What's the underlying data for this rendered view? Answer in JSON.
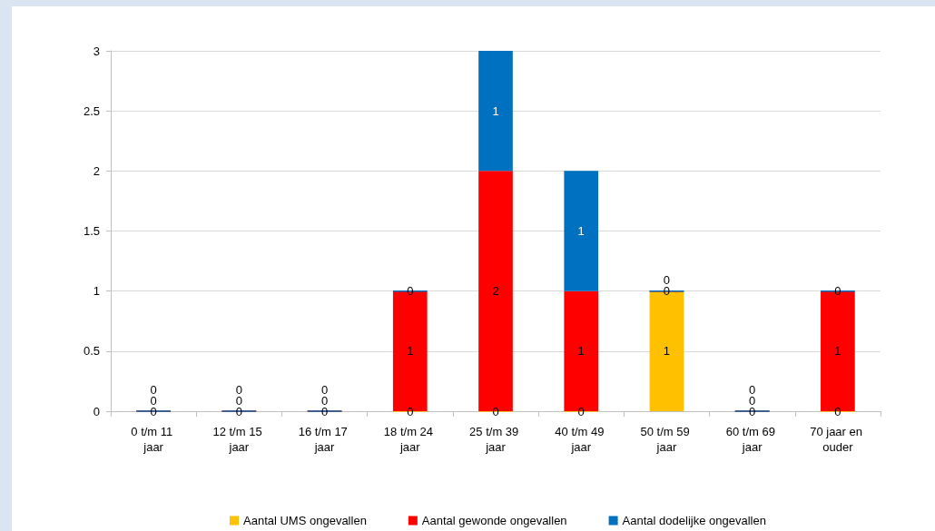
{
  "chart_data": {
    "type": "bar",
    "stacked": true,
    "categories": [
      "0 t/m 11 jaar",
      "12 t/m 15 jaar",
      "16 t/m 17 jaar",
      "18 t/m 24 jaar",
      "25 t/m 39 jaar",
      "40 t/m 49 jaar",
      "50 t/m 59 jaar",
      "60 t/m 69 jaar",
      "70 jaar en ouder"
    ],
    "series": [
      {
        "name": "Aantal UMS ongevallen",
        "color": "#ffc000",
        "values": [
          0,
          0,
          0,
          0,
          0,
          0,
          1,
          0,
          0
        ]
      },
      {
        "name": "Aantal gewonde ongevallen",
        "color": "#ff0000",
        "values": [
          0,
          0,
          0,
          1,
          2,
          1,
          0,
          0,
          1
        ]
      },
      {
        "name": "Aantal dodelijke ongevallen",
        "color": "#0070c0",
        "values": [
          0,
          0,
          0,
          0,
          1,
          1,
          0,
          0,
          0
        ]
      }
    ],
    "ylim": [
      0,
      3
    ],
    "yticks": [
      0,
      0.5,
      1,
      1.5,
      2,
      2.5,
      3
    ],
    "grid": "y",
    "legend": "bottom",
    "data_labels": true
  }
}
